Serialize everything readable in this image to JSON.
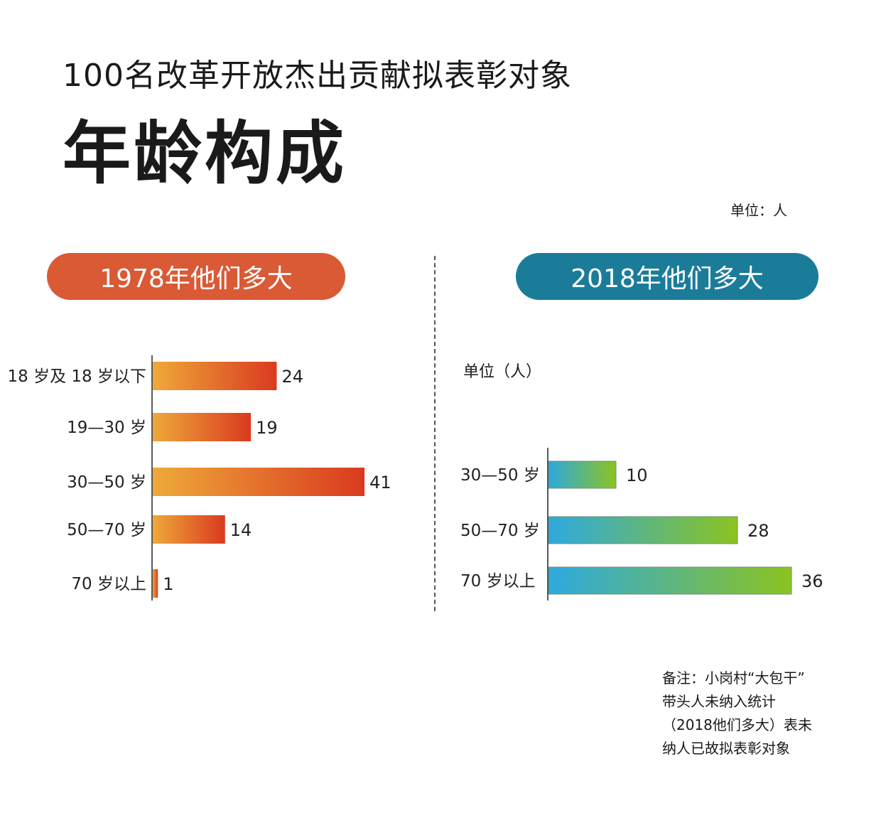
{
  "header": {
    "subtitle": "100名改革开放杰出贡献拟表彰对象",
    "title": "年龄构成",
    "unit": "单位：人"
  },
  "colors": {
    "left_pill": "#d95a35",
    "right_pill": "#1b7c99",
    "left_bar_start": "#eea93a",
    "left_bar_end": "#da3a1f",
    "right_bar_start": "#2ea9e0",
    "right_bar_end": "#8cc320"
  },
  "note": {
    "lines": [
      "备注：小岗村“大包干”",
      "带头人未纳入统计",
      "（2018他们多大）表未",
      "纳人已故拟表彰对象"
    ]
  },
  "chart_data": [
    {
      "type": "bar",
      "orientation": "horizontal",
      "title": "1978年他们多大",
      "categories": [
        "18 岁及 18 岁以下",
        "19—30 岁",
        "30—50 岁",
        "50—70 岁",
        "70 岁以上"
      ],
      "values": [
        24,
        19,
        41,
        14,
        1
      ],
      "unit_label": "",
      "grid": false
    },
    {
      "type": "bar",
      "orientation": "horizontal",
      "title": "2018年他们多大",
      "categories": [
        "30—50 岁",
        "50—70 岁",
        "70 岁以上"
      ],
      "values": [
        10,
        28,
        36
      ],
      "unit_label": "单位（人）",
      "grid": false
    }
  ]
}
